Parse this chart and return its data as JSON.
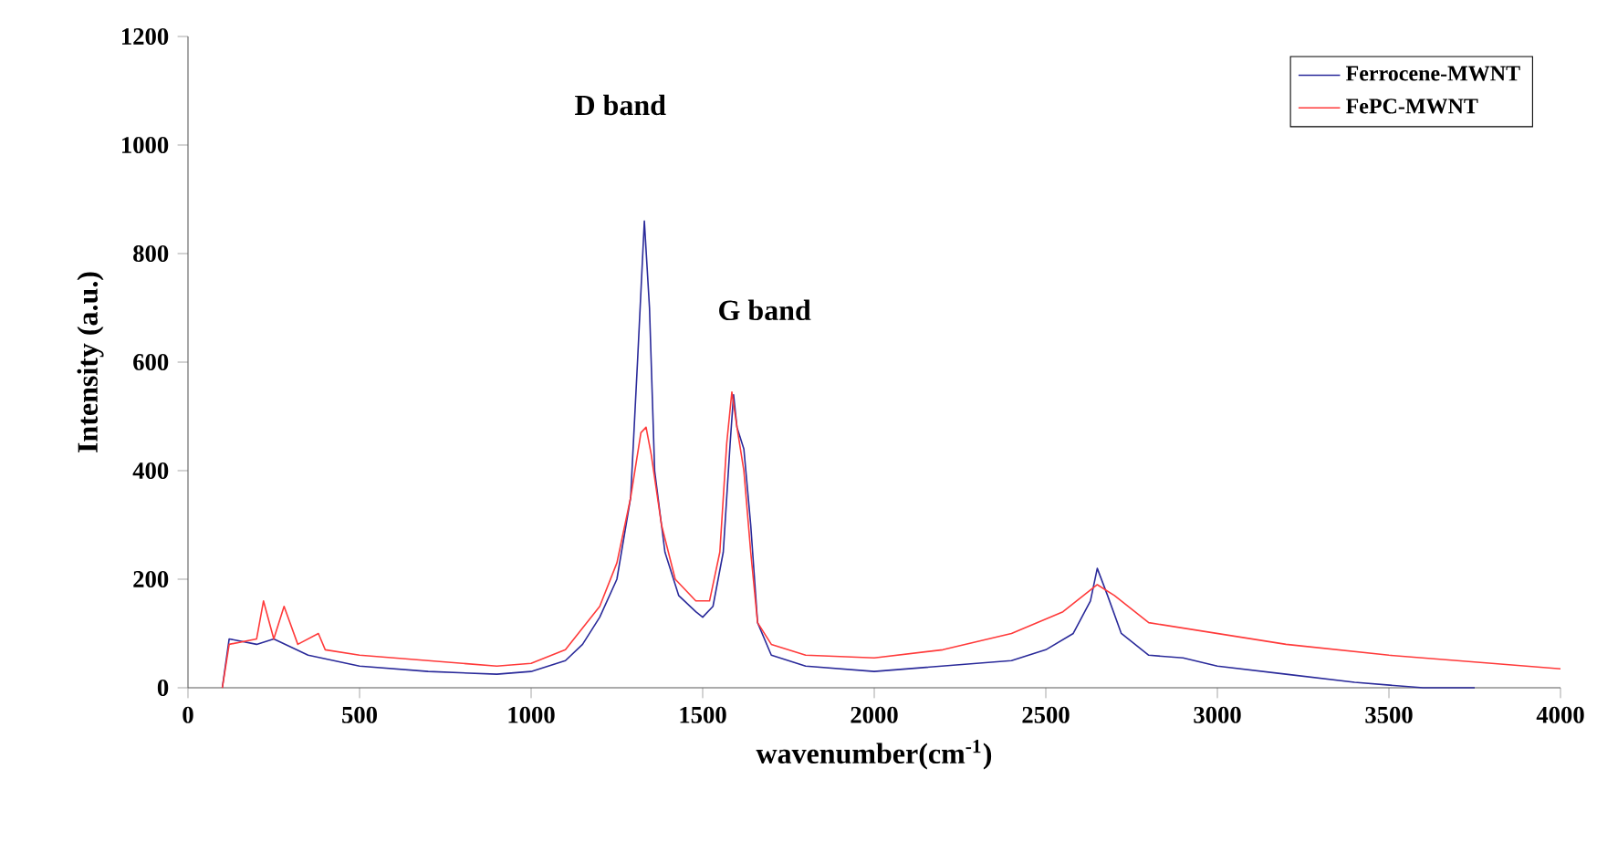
{
  "chart_data": {
    "type": "line",
    "xlabel": "wavenumber(cm$^{-1}$)",
    "ylabel": "Intensity (a.u.)",
    "xlim": [
      0,
      4000
    ],
    "ylim": [
      0,
      1200
    ],
    "xticks": [
      0,
      500,
      1000,
      1500,
      2000,
      2500,
      3000,
      3500,
      4000
    ],
    "yticks": [
      0,
      200,
      400,
      600,
      800,
      1000,
      1200
    ],
    "legend": "top right",
    "grid": false,
    "marker": "none",
    "line_style": "solid",
    "annotations": [
      "D band",
      "G band"
    ],
    "series": [
      {
        "name": "Ferrocene-MWNT",
        "color": "#2a2a9a",
        "x": [
          100,
          120,
          200,
          250,
          350,
          500,
          700,
          900,
          1000,
          1100,
          1150,
          1200,
          1250,
          1290,
          1310,
          1330,
          1345,
          1360,
          1390,
          1430,
          1480,
          1500,
          1530,
          1560,
          1580,
          1590,
          1600,
          1620,
          1640,
          1660,
          1700,
          1800,
          2000,
          2200,
          2400,
          2500,
          2580,
          2630,
          2650,
          2680,
          2720,
          2800,
          2900,
          3000,
          3200,
          3400,
          3600,
          3750
        ],
        "values": [
          0,
          90,
          80,
          90,
          60,
          40,
          30,
          25,
          30,
          50,
          80,
          130,
          200,
          350,
          600,
          860,
          700,
          400,
          250,
          170,
          140,
          130,
          150,
          250,
          450,
          540,
          480,
          440,
          300,
          120,
          60,
          40,
          30,
          40,
          50,
          70,
          100,
          160,
          220,
          170,
          100,
          60,
          55,
          40,
          25,
          10,
          0,
          0
        ]
      },
      {
        "name": "FePC-MWNT",
        "color": "#ff3a3a",
        "x": [
          100,
          120,
          200,
          220,
          250,
          280,
          320,
          380,
          400,
          500,
          700,
          900,
          1000,
          1100,
          1200,
          1250,
          1290,
          1320,
          1335,
          1350,
          1380,
          1420,
          1480,
          1520,
          1550,
          1570,
          1585,
          1600,
          1620,
          1640,
          1660,
          1700,
          1800,
          2000,
          2200,
          2400,
          2550,
          2650,
          2700,
          2800,
          3000,
          3200,
          3500,
          3800,
          4000
        ],
        "values": [
          0,
          80,
          90,
          160,
          90,
          150,
          80,
          100,
          70,
          60,
          50,
          40,
          45,
          70,
          150,
          230,
          350,
          470,
          480,
          430,
          300,
          200,
          160,
          160,
          250,
          450,
          545,
          480,
          400,
          250,
          120,
          80,
          60,
          55,
          70,
          100,
          140,
          190,
          170,
          120,
          100,
          80,
          60,
          45,
          35
        ]
      }
    ]
  }
}
